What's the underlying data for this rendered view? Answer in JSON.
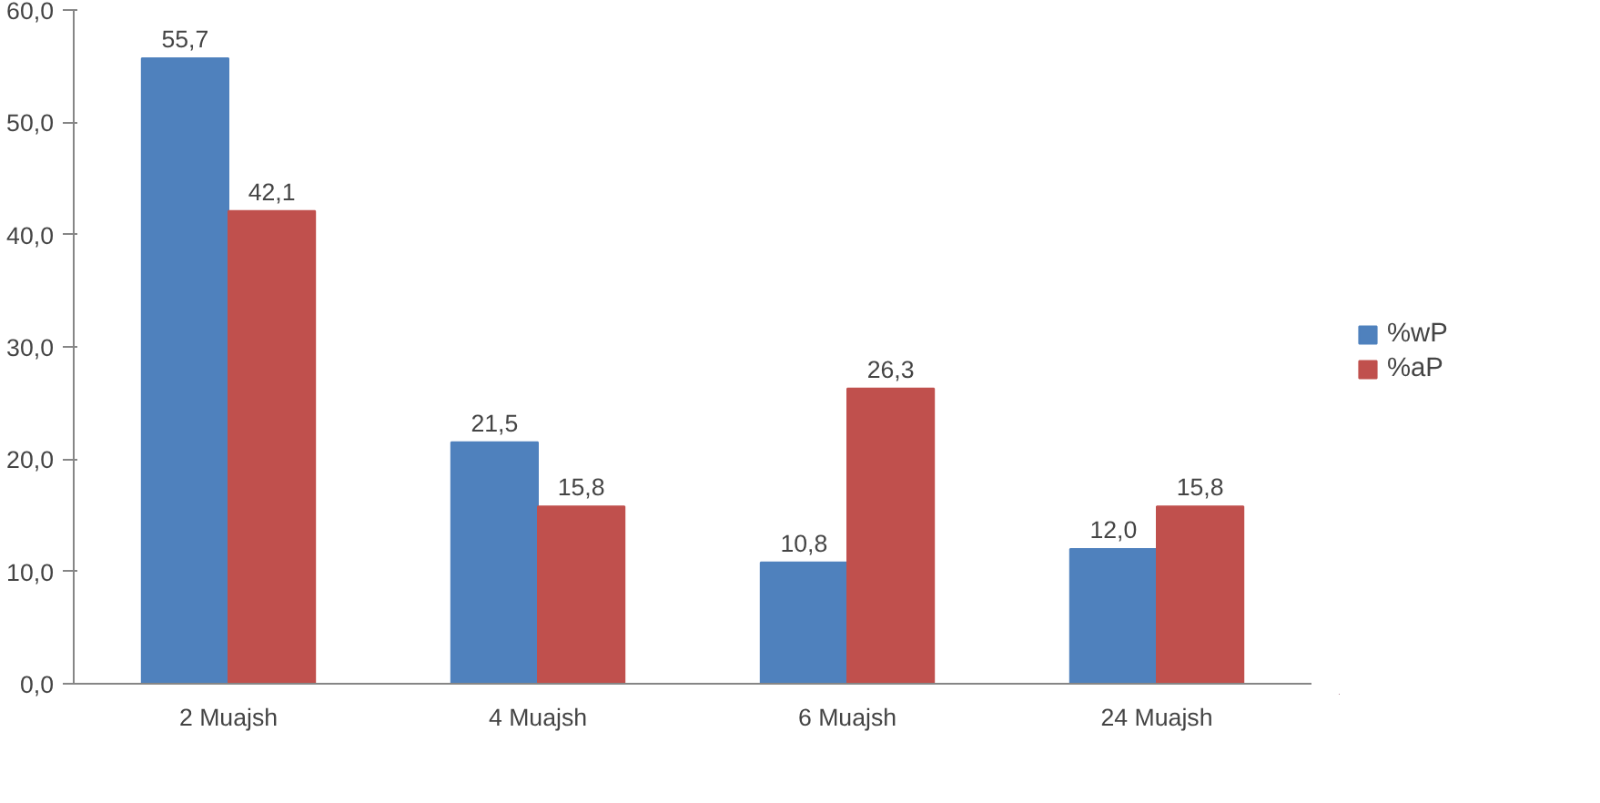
{
  "chart_data": {
    "type": "bar",
    "categories": [
      "2 Muajsh",
      "4 Muajsh",
      "6 Muajsh",
      "24 Muajsh"
    ],
    "series": [
      {
        "name": "%wP",
        "color": "#4f81bd",
        "values": [
          55.7,
          21.5,
          10.8,
          12.0
        ],
        "value_labels": [
          "55,7",
          "21,5",
          "10,8",
          "12,0"
        ]
      },
      {
        "name": "%aP",
        "color": "#c0504d",
        "values": [
          42.1,
          15.8,
          26.3,
          15.8
        ],
        "value_labels": [
          "42,1",
          "15,8",
          "26,3",
          "15,8"
        ]
      }
    ],
    "ylim": [
      0,
      60
    ],
    "yticks": [
      {
        "value": 0,
        "label": "0,0"
      },
      {
        "value": 10,
        "label": "10,0"
      },
      {
        "value": 20,
        "label": "20,0"
      },
      {
        "value": 30,
        "label": "30,0"
      },
      {
        "value": 40,
        "label": "40,0"
      },
      {
        "value": 50,
        "label": "50,0"
      },
      {
        "value": 60,
        "label": "60,0"
      }
    ],
    "grid": false,
    "legend": "right"
  }
}
